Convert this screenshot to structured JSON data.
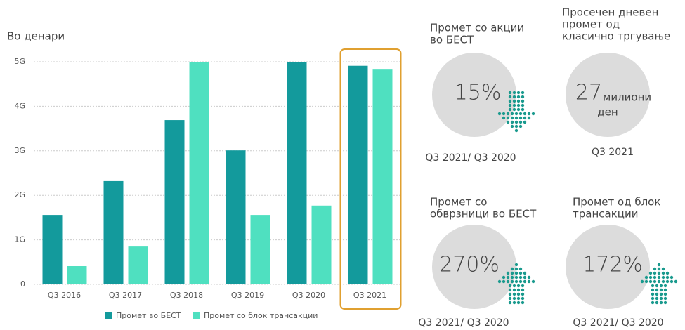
{
  "chart_data": {
    "type": "bar",
    "y_label": "Во денари",
    "categories": [
      "Q3 2016",
      "Q3 2017",
      "Q3 2018",
      "Q3 2019",
      "Q3 2020",
      "Q3 2021"
    ],
    "series": [
      {
        "name": "Промет во БЕСТ",
        "color": "#139a9c",
        "values": [
          1.56,
          2.32,
          3.69,
          3.01,
          5.0,
          4.91
        ]
      },
      {
        "name": "Промет со блок трансакции",
        "color": "#4fe0c0",
        "values": [
          0.41,
          0.85,
          5.0,
          1.56,
          1.77,
          4.84
        ]
      }
    ],
    "ylim": [
      0,
      5.3
    ],
    "yticks": [
      0,
      {
        "value": 1,
        "label": "1G"
      },
      {
        "value": 2,
        "label": "2G"
      },
      {
        "value": 3,
        "label": "3G"
      },
      {
        "value": 4,
        "label": "4G"
      },
      {
        "value": 5,
        "label": "5G"
      }
    ],
    "grid": true,
    "highlight": "Q3 2021",
    "highlight_color": "#e0a030"
  },
  "kpis": [
    {
      "title": [
        "Промет со акции",
        "во БЕСТ"
      ],
      "value": "15%",
      "period": "Q3 2021/ Q3 2020",
      "arrow": "down"
    },
    {
      "title": [
        "Просечен дневен",
        "промет од",
        "класично тргување"
      ],
      "value": "27",
      "unit": [
        "милиони",
        "ден"
      ],
      "period": "Q3 2021"
    },
    {
      "title": [
        "Промет со",
        "обврзници во БЕСТ"
      ],
      "value": "270%",
      "period": "Q3 2021/ Q3 2020",
      "arrow": "up"
    },
    {
      "title": [
        "Промет од блок",
        "трансакции"
      ],
      "value": "172%",
      "period": "Q3 2021/ Q3 2020",
      "arrow": "up"
    }
  ]
}
